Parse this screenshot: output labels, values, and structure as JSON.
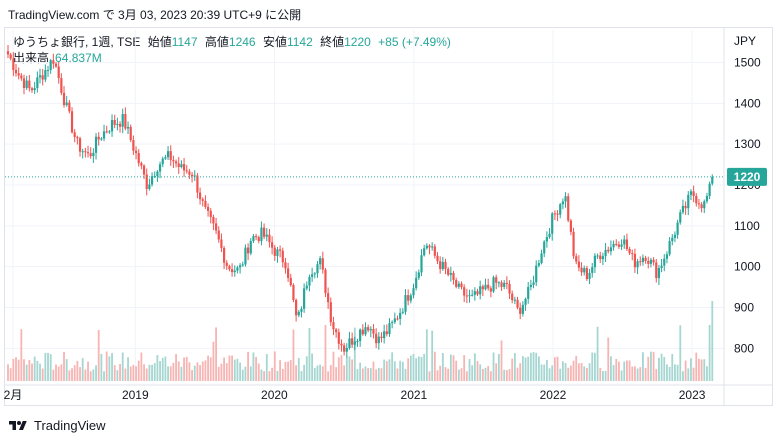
{
  "header": {
    "text": "TradingView.com で 3月 03, 2023 20:39 UTC+9 に公開"
  },
  "legend": {
    "symbol": "ゆうちょ銀行, 1週, TSE",
    "open_label": "始値",
    "open": "1147",
    "high_label": "高値",
    "high": "1246",
    "low_label": "安値",
    "low": "1142",
    "close_label": "終値",
    "close": "1220",
    "change": "+85 (+7.49%)",
    "volume_label": "出来高",
    "volume": "64.837M"
  },
  "footer": {
    "brand": "TradingView"
  },
  "colors": {
    "up": "#26a69a",
    "down": "#ef5350",
    "up_vol": "#a5d6d1",
    "down_vol": "#f6b4b2",
    "price_line": "#26a69a"
  },
  "chart_data": {
    "type": "candlestick",
    "currency": "JPY",
    "y_ticks": [
      800,
      900,
      1000,
      1100,
      1200,
      1300,
      1400,
      1500
    ],
    "ylim": [
      720,
      1560
    ],
    "x_ticks": [
      "2月",
      "2019",
      "2020",
      "2021",
      "2022",
      "2023"
    ],
    "last_price": 1220,
    "last_price_label": "1220",
    "series_close": [
      [
        "2018-02-01",
        1520
      ],
      [
        "2018-03-01",
        1470
      ],
      [
        "2018-04-01",
        1430
      ],
      [
        "2018-05-01",
        1470
      ],
      [
        "2018-06-01",
        1510
      ],
      [
        "2018-07-01",
        1400
      ],
      [
        "2018-08-01",
        1300
      ],
      [
        "2018-09-01",
        1270
      ],
      [
        "2018-10-01",
        1320
      ],
      [
        "2018-11-01",
        1350
      ],
      [
        "2018-12-01",
        1360
      ],
      [
        "2019-01-01",
        1280
      ],
      [
        "2019-02-01",
        1200
      ],
      [
        "2019-03-01",
        1250
      ],
      [
        "2019-04-01",
        1270
      ],
      [
        "2019-05-01",
        1240
      ],
      [
        "2019-06-01",
        1230
      ],
      [
        "2019-07-01",
        1140
      ],
      [
        "2019-08-01",
        1080
      ],
      [
        "2019-09-01",
        1000
      ],
      [
        "2019-10-01",
        990
      ],
      [
        "2019-11-01",
        1070
      ],
      [
        "2019-12-01",
        1080
      ],
      [
        "2020-01-01",
        1040
      ],
      [
        "2020-02-01",
        1010
      ],
      [
        "2020-03-01",
        860
      ],
      [
        "2020-04-01",
        990
      ],
      [
        "2020-05-01",
        1010
      ],
      [
        "2020-06-01",
        860
      ],
      [
        "2020-07-01",
        800
      ],
      [
        "2020-08-01",
        830
      ],
      [
        "2020-09-01",
        860
      ],
      [
        "2020-10-01",
        820
      ],
      [
        "2020-11-01",
        850
      ],
      [
        "2020-12-01",
        900
      ],
      [
        "2021-01-01",
        960
      ],
      [
        "2021-02-01",
        1060
      ],
      [
        "2021-03-01",
        1020
      ],
      [
        "2021-04-01",
        980
      ],
      [
        "2021-05-01",
        940
      ],
      [
        "2021-06-01",
        920
      ],
      [
        "2021-07-01",
        940
      ],
      [
        "2021-08-01",
        960
      ],
      [
        "2021-09-01",
        950
      ],
      [
        "2021-10-01",
        890
      ],
      [
        "2021-11-01",
        940
      ],
      [
        "2021-12-01",
        1040
      ],
      [
        "2022-01-01",
        1120
      ],
      [
        "2022-02-01",
        1180
      ],
      [
        "2022-03-01",
        1000
      ],
      [
        "2022-04-01",
        980
      ],
      [
        "2022-05-01",
        1030
      ],
      [
        "2022-06-01",
        1050
      ],
      [
        "2022-07-01",
        1070
      ],
      [
        "2022-08-01",
        1010
      ],
      [
        "2022-09-01",
        1030
      ],
      [
        "2022-10-01",
        985
      ],
      [
        "2022-11-01",
        1050
      ],
      [
        "2022-12-01",
        1120
      ],
      [
        "2023-01-01",
        1180
      ],
      [
        "2023-02-01",
        1150
      ],
      [
        "2023-03-01",
        1220
      ]
    ]
  }
}
